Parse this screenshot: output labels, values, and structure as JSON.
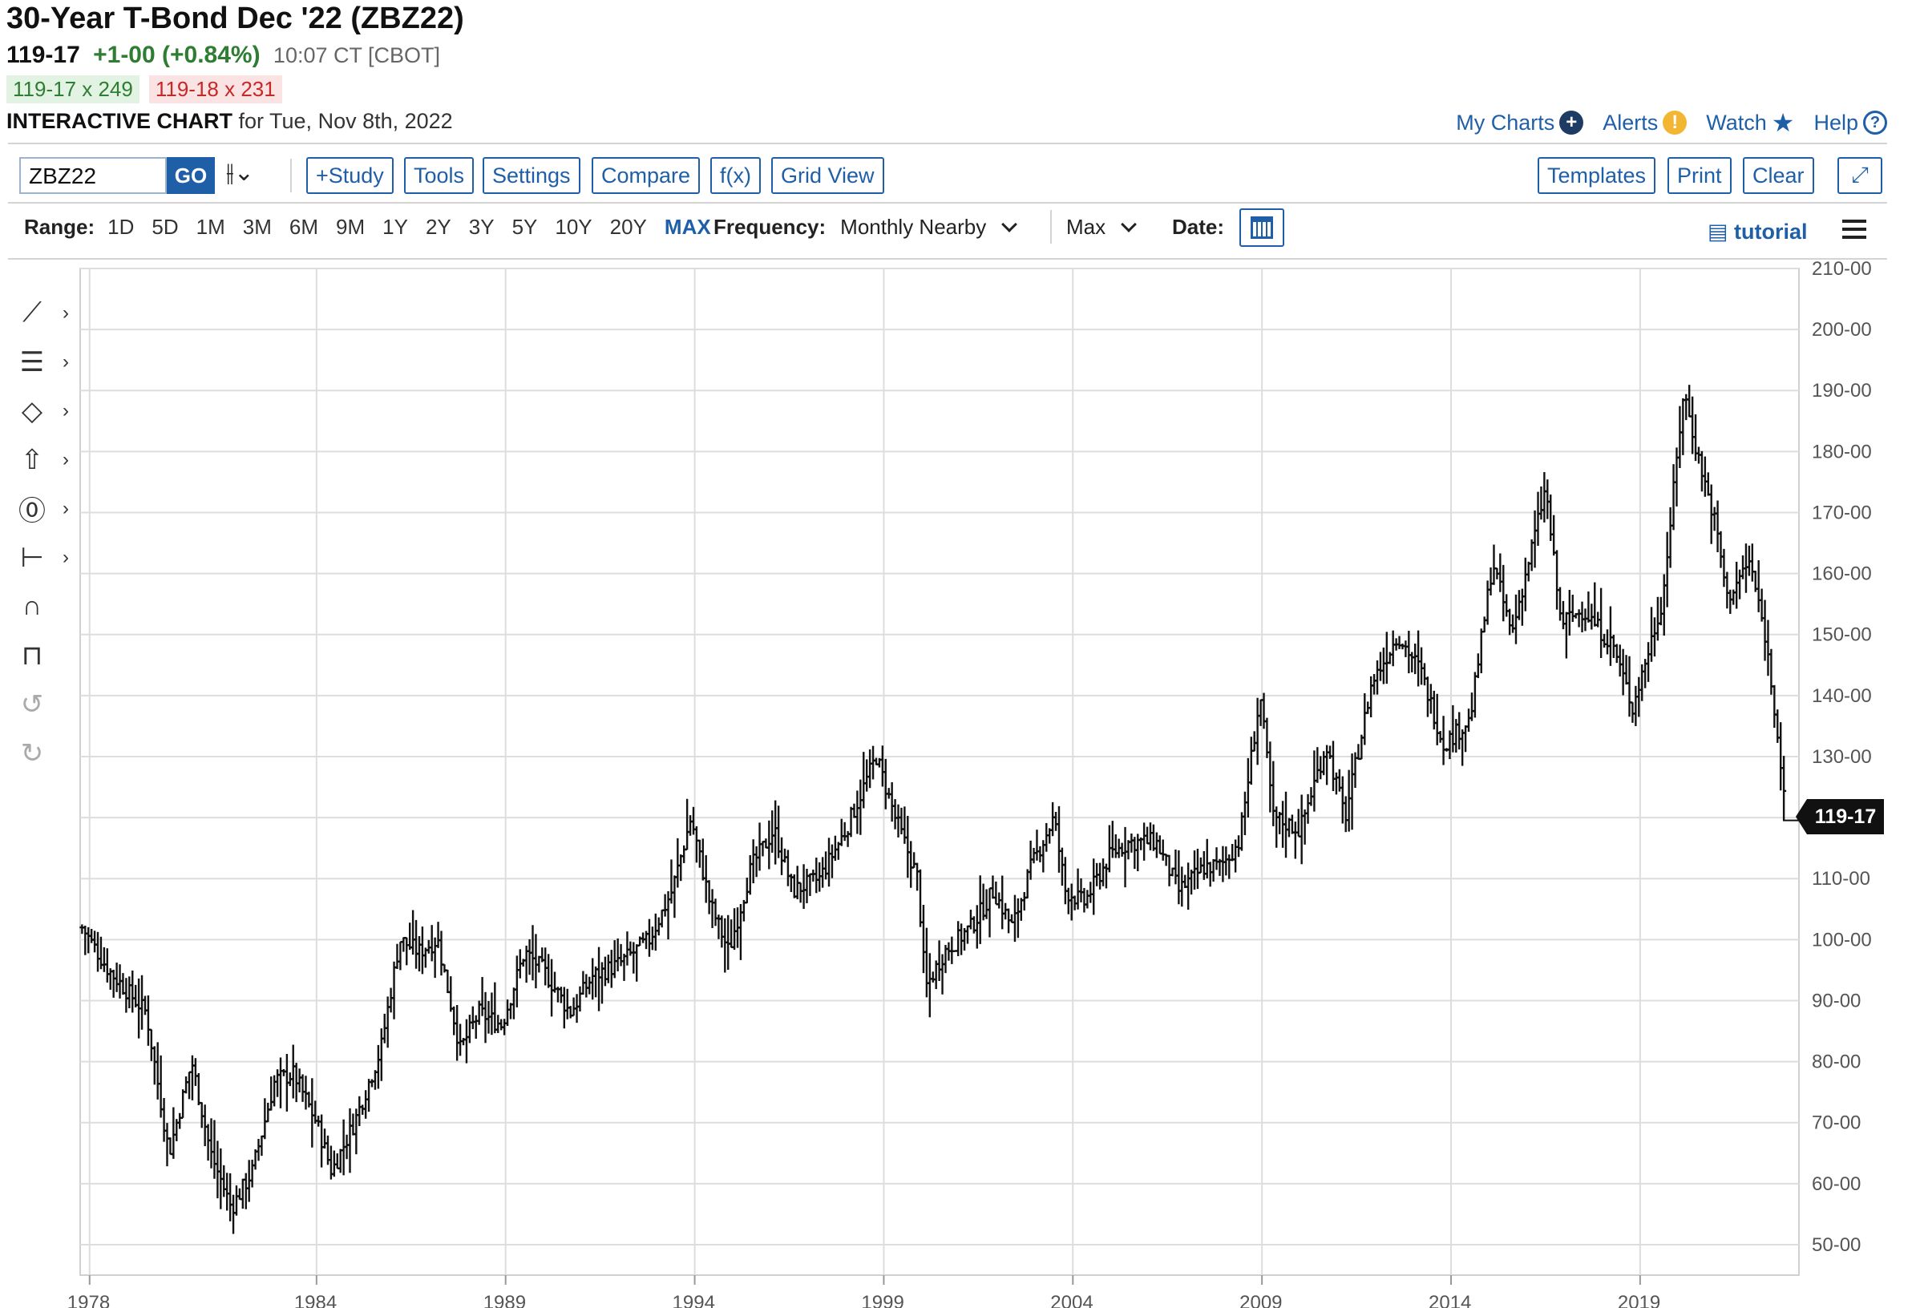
{
  "header": {
    "title": "30-Year T-Bond Dec '22 (ZBZ22)",
    "last": "119-17",
    "change": "+1-00 (+0.84%)",
    "time": "10:07 CT [CBOT]",
    "bid": "119-17 x 249",
    "ask": "119-18 x 231",
    "interactive_label": "INTERACTIVE CHART",
    "interactive_date": "for Tue, Nov 8th, 2022"
  },
  "toplinks": {
    "my_charts": "My Charts",
    "alerts": "Alerts",
    "watch": "Watch",
    "help": "Help"
  },
  "toolbar": {
    "symbol": "ZBZ22",
    "go": "GO",
    "study": "+Study",
    "tools": "Tools",
    "settings": "Settings",
    "compare": "Compare",
    "fx": "f(x)",
    "grid_view": "Grid View",
    "templates": "Templates",
    "print": "Print",
    "clear": "Clear"
  },
  "rangebar": {
    "label": "Range:",
    "ranges": [
      "1D",
      "5D",
      "1M",
      "3M",
      "6M",
      "9M",
      "1Y",
      "2Y",
      "3Y",
      "5Y",
      "10Y",
      "20Y",
      "MAX"
    ],
    "active": "MAX",
    "frequency_label": "Frequency:",
    "frequency_value": "Monthly Nearby",
    "max_value": "Max",
    "date_label": "Date:",
    "tutorial": "tutorial"
  },
  "icons": {
    "plus": "plus-circle-icon",
    "alert": "exclamation-icon",
    "star": "star-icon",
    "help": "question-icon",
    "calendar": "calendar-icon",
    "menu": "hamburger-icon"
  },
  "colors": {
    "accent": "#1f5fa8",
    "up": "#2e7d32",
    "down": "#c62828",
    "bars": "#111111"
  },
  "chart_data": {
    "type": "ohlc",
    "title": "30-Year T-Bond Dec '22 (ZBZ22)",
    "frequency": "Monthly Nearby",
    "ylim": [
      45,
      210
    ],
    "y_ticks": [
      "50-00",
      "60-00",
      "70-00",
      "80-00",
      "90-00",
      "100-00",
      "110-00",
      "120-00",
      "130-00",
      "140-00",
      "150-00",
      "160-00",
      "170-00",
      "180-00",
      "190-00",
      "200-00",
      "210-00"
    ],
    "y_tick_values": [
      50,
      60,
      70,
      80,
      90,
      100,
      110,
      120,
      130,
      140,
      150,
      160,
      170,
      180,
      190,
      200,
      210
    ],
    "x_ticks": [
      "1978",
      "1984",
      "1989",
      "1994",
      "1999",
      "2004",
      "2009",
      "2014",
      "2019"
    ],
    "x_tick_years": [
      1978,
      1984,
      1989,
      1994,
      1999,
      2004,
      2009,
      2014,
      2019
    ],
    "x_range": [
      1977.75,
      2023.2
    ],
    "last_price_label": "119-17",
    "last_price": 119.53,
    "anchors": [
      [
        1977.8,
        102
      ],
      [
        1978.5,
        95
      ],
      [
        1979.5,
        88
      ],
      [
        1980.1,
        65
      ],
      [
        1980.7,
        80
      ],
      [
        1981.2,
        65
      ],
      [
        1981.75,
        56
      ],
      [
        1982.3,
        62
      ],
      [
        1982.9,
        77
      ],
      [
        1983.4,
        78
      ],
      [
        1984.0,
        70
      ],
      [
        1984.4,
        62
      ],
      [
        1985.0,
        70
      ],
      [
        1985.7,
        82
      ],
      [
        1986.2,
        100
      ],
      [
        1986.7,
        98
      ],
      [
        1987.2,
        100
      ],
      [
        1987.8,
        82
      ],
      [
        1988.3,
        88
      ],
      [
        1988.9,
        86
      ],
      [
        1989.5,
        98
      ],
      [
        1990.0,
        95
      ],
      [
        1990.7,
        88
      ],
      [
        1991.3,
        94
      ],
      [
        1992.0,
        96
      ],
      [
        1992.8,
        100
      ],
      [
        1993.4,
        108
      ],
      [
        1993.9,
        120
      ],
      [
        1994.4,
        106
      ],
      [
        1994.9,
        98
      ],
      [
        1995.5,
        112
      ],
      [
        1996.1,
        118
      ],
      [
        1996.6,
        108
      ],
      [
        1997.3,
        110
      ],
      [
        1998.0,
        118
      ],
      [
        1998.8,
        130
      ],
      [
        1999.3,
        120
      ],
      [
        1999.9,
        110
      ],
      [
        2000.1,
        92
      ],
      [
        2000.6,
        98
      ],
      [
        2001.3,
        102
      ],
      [
        2001.9,
        108
      ],
      [
        2002.4,
        102
      ],
      [
        2002.9,
        112
      ],
      [
        2003.5,
        120
      ],
      [
        2003.8,
        108
      ],
      [
        2004.3,
        106
      ],
      [
        2005.0,
        114
      ],
      [
        2005.5,
        116
      ],
      [
        2006.2,
        116
      ],
      [
        2006.8,
        108
      ],
      [
        2007.5,
        112
      ],
      [
        2007.9,
        112
      ],
      [
        2008.4,
        116
      ],
      [
        2008.95,
        140
      ],
      [
        2009.3,
        120
      ],
      [
        2010.0,
        118
      ],
      [
        2010.7,
        132
      ],
      [
        2011.2,
        120
      ],
      [
        2011.9,
        142
      ],
      [
        2012.6,
        150
      ],
      [
        2013.2,
        144
      ],
      [
        2013.8,
        132
      ],
      [
        2014.5,
        136
      ],
      [
        2015.1,
        162
      ],
      [
        2015.6,
        150
      ],
      [
        2016.5,
        174
      ],
      [
        2016.9,
        152
      ],
      [
        2017.5,
        154
      ],
      [
        2018.3,
        148
      ],
      [
        2018.8,
        138
      ],
      [
        2019.6,
        156
      ],
      [
        2020.15,
        190
      ],
      [
        2020.5,
        180
      ],
      [
        2021.0,
        168
      ],
      [
        2021.3,
        156
      ],
      [
        2021.9,
        162
      ],
      [
        2022.3,
        150
      ],
      [
        2022.6,
        136
      ],
      [
        2022.85,
        120
      ]
    ]
  }
}
